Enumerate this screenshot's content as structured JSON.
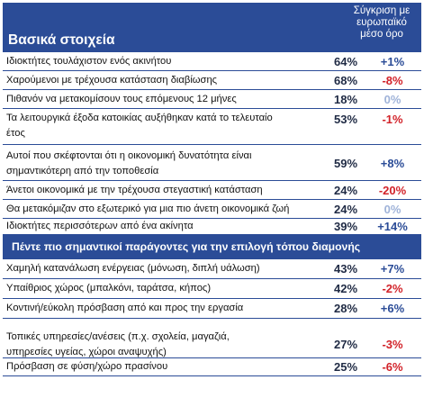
{
  "header": {
    "title": "Βασικά στοιχεία",
    "comparison": [
      "Σύγκριση με",
      "ευρωπαϊκό",
      "μέσο όρο"
    ]
  },
  "section1": [
    {
      "label": [
        "Ιδιοκτήτες τουλάχιστον ενός ακινήτου"
      ],
      "value": "64%",
      "diff": "+1%",
      "tone": "pos"
    },
    {
      "label": [
        "Χαρούμενοι με τρέχουσα κατάσταση διαβίωσης"
      ],
      "value": "68%",
      "diff": "-8%",
      "tone": "neg"
    },
    {
      "label": [
        "Πιθανόν να μετακομίσουν τους επόμενους 12 μήνες"
      ],
      "value": "18%",
      "diff": "0%",
      "tone": "zero"
    },
    {
      "label": [
        "Τα λειτουργικά έξοδα κατοικίας αυξήθηκαν κατά το τελευταίο",
        "έτος"
      ],
      "value": "53%",
      "diff": "-1%",
      "tone": "neg"
    },
    {
      "label": [
        "Αυτοί που σκέφτονται ότι η οικονομική δυνατότητα είναι",
        "σημαντικότερη από την τοποθεσία"
      ],
      "value": "59%",
      "diff": "+8%",
      "tone": "pos"
    },
    {
      "label": [
        "Άνετοι οικονομικά με την τρέχουσα στεγαστική κατάσταση"
      ],
      "value": "24%",
      "diff": "-20%",
      "tone": "neg"
    },
    {
      "label": [
        "Θα μετακόμιζαν στο εξωτερικό για μια πιο άνετη οικονομικά ζωή"
      ],
      "value": "24%",
      "diff": "0%",
      "tone": "zero"
    },
    {
      "label": [
        "Ιδιοκτήτες περισσότερων από ένα ακίνητα"
      ],
      "value": "39%",
      "diff": "+14%",
      "tone": "pos"
    }
  ],
  "section2_title": "Πέντε πιο σημαντικοί παράγοντες για την επιλογή τόπου διαμονής",
  "section2": [
    {
      "label": [
        "Χαμηλή κατανάλωση ενέργειας (μόνωση, διπλή υάλωση)"
      ],
      "value": "43%",
      "diff": "+7%",
      "tone": "pos"
    },
    {
      "label": [
        "Υπαίθριος χώρος (μπαλκόνι, ταράτσα, κήπος)"
      ],
      "value": "42%",
      "diff": "-2%",
      "tone": "neg"
    },
    {
      "label": [
        "Κοντινή/εύκολη πρόσβαση από και προς την εργασία"
      ],
      "value": "28%",
      "diff": "+6%",
      "tone": "pos"
    },
    {
      "label": [
        "Τοπικές υπηρεσίες/ανέσεις (π.χ. σχολεία, μαγαζιά,",
        "υπηρεσίες υγείας, χώροι αναψυχής)"
      ],
      "value": "27%",
      "diff": "-3%",
      "tone": "neg"
    },
    {
      "label": [
        "Πρόσβαση σε φύση/χώρο πρασίνου"
      ],
      "value": "25%",
      "diff": "-6%",
      "tone": "neg"
    }
  ]
}
